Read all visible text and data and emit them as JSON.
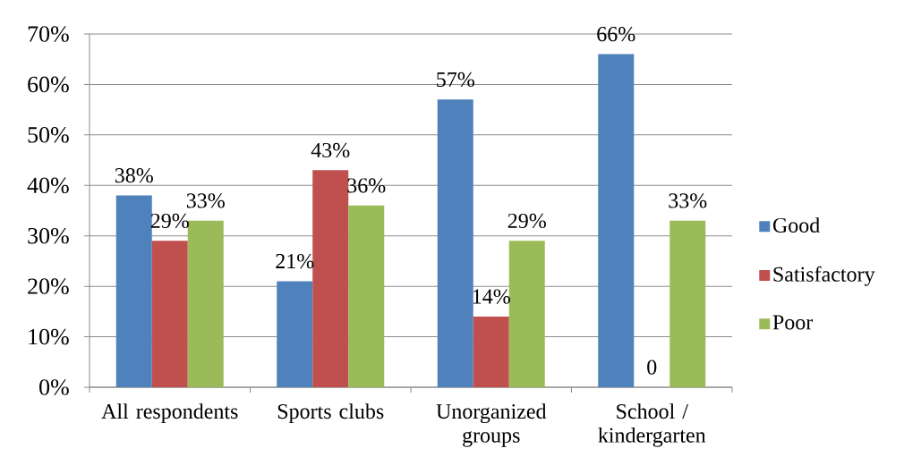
{
  "chart_data": {
    "type": "bar",
    "categories": [
      "All respondents",
      "Sports clubs",
      "Unorganized groups",
      "School / kindergarten"
    ],
    "series": [
      {
        "name": "Good",
        "color": "#4f81bd",
        "values": [
          38,
          21,
          57,
          66
        ],
        "value_labels": [
          "38%",
          "21%",
          "57%",
          "66%"
        ]
      },
      {
        "name": "Satisfactory",
        "color": "#c0504d",
        "values": [
          29,
          43,
          14,
          0
        ],
        "value_labels": [
          "29%",
          "43%",
          "14%",
          "0"
        ]
      },
      {
        "name": "Poor",
        "color": "#9bbb59",
        "values": [
          33,
          36,
          29,
          33
        ],
        "value_labels": [
          "33%",
          "36%",
          "29%",
          "33%"
        ]
      }
    ],
    "ylim": [
      0,
      70
    ],
    "yticks": [
      {
        "value": 0,
        "label": "0%"
      },
      {
        "value": 10,
        "label": "10%"
      },
      {
        "value": 20,
        "label": "20%"
      },
      {
        "value": 30,
        "label": "30%"
      },
      {
        "value": 40,
        "label": "40%"
      },
      {
        "value": 50,
        "label": "50%"
      },
      {
        "value": 60,
        "label": "60%"
      },
      {
        "value": 70,
        "label": "70%"
      }
    ],
    "grid": "y",
    "legend": "right"
  }
}
